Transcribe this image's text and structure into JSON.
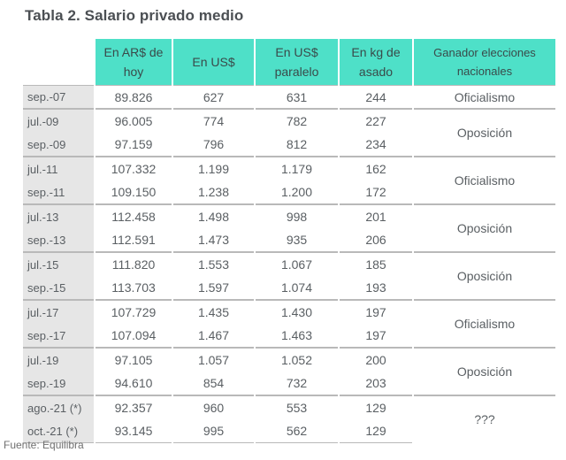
{
  "title": "Tabla 2. Salario privado medio",
  "source": "Fuente: Equilibra",
  "header": {
    "period": "",
    "ars_line1": "En AR$ de",
    "ars_line2": "hoy",
    "usd": "En US$",
    "usd_par_line1": "En US$",
    "usd_par_line2": "paralelo",
    "kg_line1": "En kg de",
    "kg_line2": "asado",
    "winner_line1": "Ganador elecciones",
    "winner_line2": "nacionales"
  },
  "groups": [
    {
      "winner": "Oficialismo",
      "rows": [
        {
          "period": "sep.-07",
          "ars": "89.826",
          "usd": "627",
          "usd_par": "631",
          "kg": "244"
        }
      ]
    },
    {
      "winner": "Oposición",
      "rows": [
        {
          "period": "jul.-09",
          "ars": "96.005",
          "usd": "774",
          "usd_par": "782",
          "kg": "227"
        },
        {
          "period": "sep.-09",
          "ars": "97.159",
          "usd": "796",
          "usd_par": "812",
          "kg": "234"
        }
      ]
    },
    {
      "winner": "Oficialismo",
      "rows": [
        {
          "period": "jul.-11",
          "ars": "107.332",
          "usd": "1.199",
          "usd_par": "1.179",
          "kg": "162"
        },
        {
          "period": "sep.-11",
          "ars": "109.150",
          "usd": "1.238",
          "usd_par": "1.200",
          "kg": "172"
        }
      ]
    },
    {
      "winner": "Oposición",
      "rows": [
        {
          "period": "jul.-13",
          "ars": "112.458",
          "usd": "1.498",
          "usd_par": "998",
          "kg": "201"
        },
        {
          "period": "sep.-13",
          "ars": "112.591",
          "usd": "1.473",
          "usd_par": "935",
          "kg": "206"
        }
      ]
    },
    {
      "winner": "Oposición",
      "rows": [
        {
          "period": "jul.-15",
          "ars": "111.820",
          "usd": "1.553",
          "usd_par": "1.067",
          "kg": "185"
        },
        {
          "period": "sep.-15",
          "ars": "113.703",
          "usd": "1.597",
          "usd_par": "1.074",
          "kg": "193"
        }
      ]
    },
    {
      "winner": "Oficialismo",
      "rows": [
        {
          "period": "jul.-17",
          "ars": "107.729",
          "usd": "1.435",
          "usd_par": "1.430",
          "kg": "197"
        },
        {
          "period": "sep.-17",
          "ars": "107.094",
          "usd": "1.467",
          "usd_par": "1.463",
          "kg": "197"
        }
      ]
    },
    {
      "winner": "Oposición",
      "rows": [
        {
          "period": "jul.-19",
          "ars": "97.105",
          "usd": "1.057",
          "usd_par": "1.052",
          "kg": "200"
        },
        {
          "period": "sep.-19",
          "ars": "94.610",
          "usd": "854",
          "usd_par": "732",
          "kg": "203"
        }
      ]
    },
    {
      "winner": "???",
      "rows": [
        {
          "period": "ago.-21 (*)",
          "ars": "92.357",
          "usd": "960",
          "usd_par": "553",
          "kg": "129"
        },
        {
          "period": "oct.-21 (*)",
          "ars": "93.145",
          "usd": "995",
          "usd_par": "562",
          "kg": "129"
        }
      ]
    }
  ]
}
